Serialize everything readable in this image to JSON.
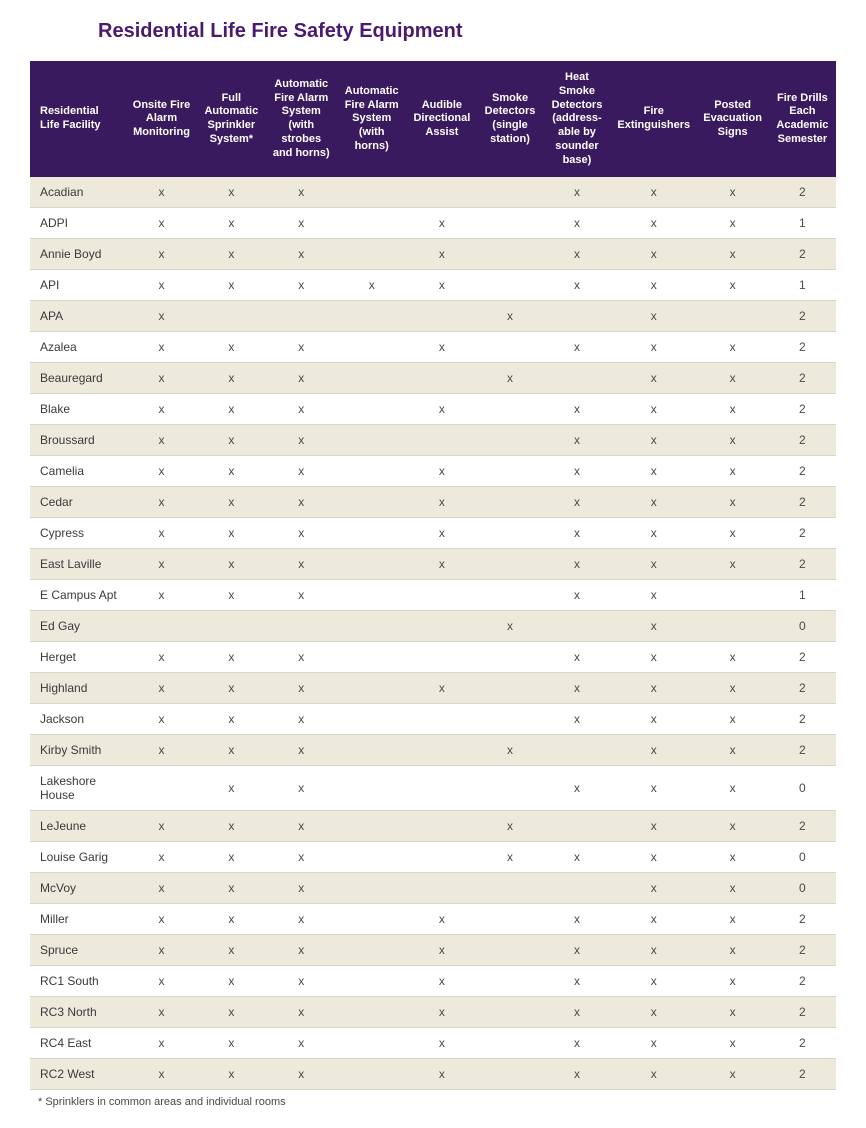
{
  "title": "Residential Life Fire Safety Equipment",
  "footnote": "* Sprinklers in common areas and individual rooms",
  "mark": "x",
  "colors": {
    "header_bg": "#3a1a5e",
    "header_text": "#ffffff",
    "title_text": "#4a1a6e",
    "row_odd_bg": "#edeadb",
    "row_even_bg": "#ffffff",
    "cell_text": "#4a4a4a",
    "border": "#d8d4c8"
  },
  "columns": [
    "Residential Life Facility",
    "Onsite Fire Alarm Monitoring",
    "Full Automatic Sprinkler System*",
    "Automatic Fire Alarm System (with strobes and horns)",
    "Automatic Fire Alarm System (with horns)",
    "Audible Directional Assist",
    "Smoke Detectors (single station)",
    "Heat Smoke Detectors (address-able by sounder base)",
    "Fire Extinguishers",
    "Posted Evacuation Signs",
    "Fire Drills Each Academic Semester"
  ],
  "rows": [
    {
      "name": "Acadian",
      "c": [
        1,
        1,
        1,
        0,
        0,
        0,
        1,
        1,
        1
      ],
      "drills": "2"
    },
    {
      "name": "ADPI",
      "c": [
        1,
        1,
        1,
        0,
        1,
        0,
        1,
        1,
        1
      ],
      "drills": "1"
    },
    {
      "name": "Annie Boyd",
      "c": [
        1,
        1,
        1,
        0,
        1,
        0,
        1,
        1,
        1
      ],
      "drills": "2"
    },
    {
      "name": "API",
      "c": [
        1,
        1,
        1,
        1,
        1,
        0,
        1,
        1,
        1
      ],
      "drills": "1"
    },
    {
      "name": "APA",
      "c": [
        1,
        0,
        0,
        0,
        0,
        1,
        0,
        1,
        0
      ],
      "drills": "2"
    },
    {
      "name": "Azalea",
      "c": [
        1,
        1,
        1,
        0,
        1,
        0,
        1,
        1,
        1
      ],
      "drills": "2"
    },
    {
      "name": "Beauregard",
      "c": [
        1,
        1,
        1,
        0,
        0,
        1,
        0,
        1,
        1
      ],
      "drills": "2"
    },
    {
      "name": "Blake",
      "c": [
        1,
        1,
        1,
        0,
        1,
        0,
        1,
        1,
        1
      ],
      "drills": "2"
    },
    {
      "name": "Broussard",
      "c": [
        1,
        1,
        1,
        0,
        0,
        0,
        1,
        1,
        1
      ],
      "drills": "2"
    },
    {
      "name": "Camelia",
      "c": [
        1,
        1,
        1,
        0,
        1,
        0,
        1,
        1,
        1
      ],
      "drills": "2"
    },
    {
      "name": "Cedar",
      "c": [
        1,
        1,
        1,
        0,
        1,
        0,
        1,
        1,
        1
      ],
      "drills": "2"
    },
    {
      "name": "Cypress",
      "c": [
        1,
        1,
        1,
        0,
        1,
        0,
        1,
        1,
        1
      ],
      "drills": "2"
    },
    {
      "name": "East Laville",
      "c": [
        1,
        1,
        1,
        0,
        1,
        0,
        1,
        1,
        1
      ],
      "drills": "2"
    },
    {
      "name": "E Campus Apt",
      "c": [
        1,
        1,
        1,
        0,
        0,
        0,
        1,
        1,
        0
      ],
      "drills": "1"
    },
    {
      "name": "Ed Gay",
      "c": [
        0,
        0,
        0,
        0,
        0,
        1,
        0,
        1,
        0
      ],
      "drills": "0"
    },
    {
      "name": "Herget",
      "c": [
        1,
        1,
        1,
        0,
        0,
        0,
        1,
        1,
        1
      ],
      "drills": "2"
    },
    {
      "name": "Highland",
      "c": [
        1,
        1,
        1,
        0,
        1,
        0,
        1,
        1,
        1
      ],
      "drills": "2"
    },
    {
      "name": "Jackson",
      "c": [
        1,
        1,
        1,
        0,
        0,
        0,
        1,
        1,
        1
      ],
      "drills": "2"
    },
    {
      "name": "Kirby Smith",
      "c": [
        1,
        1,
        1,
        0,
        0,
        1,
        0,
        1,
        1
      ],
      "drills": "2"
    },
    {
      "name": "Lakeshore House",
      "c": [
        0,
        1,
        1,
        0,
        0,
        0,
        1,
        1,
        1
      ],
      "drills": "0"
    },
    {
      "name": "LeJeune",
      "c": [
        1,
        1,
        1,
        0,
        0,
        1,
        0,
        1,
        1
      ],
      "drills": "2"
    },
    {
      "name": "Louise Garig",
      "c": [
        1,
        1,
        1,
        0,
        0,
        1,
        1,
        1,
        1
      ],
      "drills": "0"
    },
    {
      "name": "McVoy",
      "c": [
        1,
        1,
        1,
        0,
        0,
        0,
        0,
        1,
        1
      ],
      "drills": "0"
    },
    {
      "name": "Miller",
      "c": [
        1,
        1,
        1,
        0,
        1,
        0,
        1,
        1,
        1
      ],
      "drills": "2"
    },
    {
      "name": "Spruce",
      "c": [
        1,
        1,
        1,
        0,
        1,
        0,
        1,
        1,
        1
      ],
      "drills": "2"
    },
    {
      "name": "RC1 South",
      "c": [
        1,
        1,
        1,
        0,
        1,
        0,
        1,
        1,
        1
      ],
      "drills": "2"
    },
    {
      "name": "RC3 North",
      "c": [
        1,
        1,
        1,
        0,
        1,
        0,
        1,
        1,
        1
      ],
      "drills": "2"
    },
    {
      "name": "RC4 East",
      "c": [
        1,
        1,
        1,
        0,
        1,
        0,
        1,
        1,
        1
      ],
      "drills": "2"
    },
    {
      "name": "RC2 West",
      "c": [
        1,
        1,
        1,
        0,
        1,
        0,
        1,
        1,
        1
      ],
      "drills": "2"
    }
  ]
}
